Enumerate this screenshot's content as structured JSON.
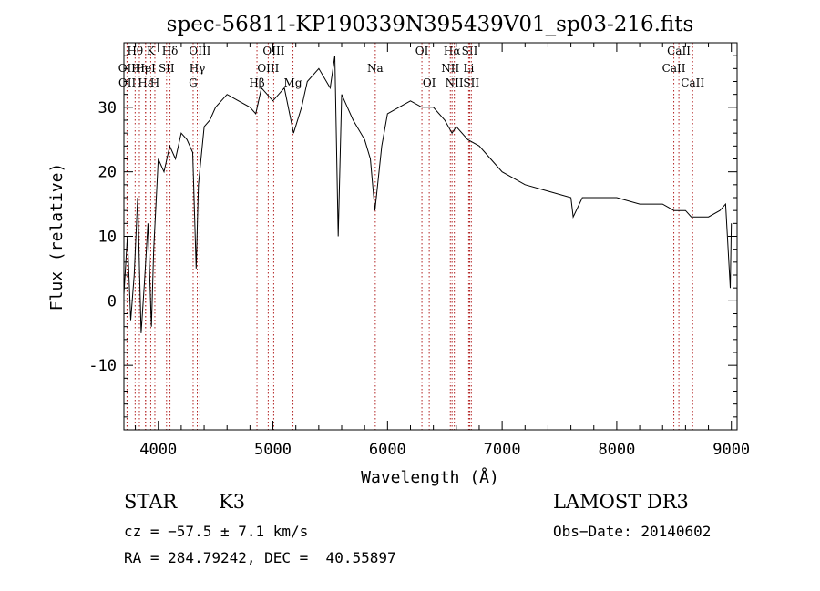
{
  "chart_data": {
    "type": "line",
    "title": "spec-56811-KP190339N395439V01_sp03-216.fits",
    "xlabel": "Wavelength (Å)",
    "ylabel": "Flux (relative)",
    "xlim": [
      3700,
      9050
    ],
    "ylim": [
      -20,
      40
    ],
    "xticks": [
      4000,
      5000,
      6000,
      7000,
      8000,
      9000
    ],
    "yticks": [
      -10,
      0,
      10,
      20,
      30
    ],
    "series": [
      {
        "name": "flux",
        "x": [
          3700,
          3730,
          3760,
          3790,
          3820,
          3850,
          3880,
          3910,
          3940,
          3960,
          3980,
          4000,
          4050,
          4100,
          4150,
          4200,
          4250,
          4300,
          4330,
          4350,
          4400,
          4450,
          4500,
          4600,
          4700,
          4800,
          4850,
          4900,
          5000,
          5100,
          5180,
          5250,
          5300,
          5400,
          5500,
          5540,
          5570,
          5600,
          5700,
          5800,
          5850,
          5890,
          5950,
          6000,
          6100,
          6200,
          6300,
          6400,
          6500,
          6563,
          6600,
          6700,
          6800,
          6900,
          7000,
          7200,
          7400,
          7600,
          7620,
          7700,
          7800,
          8000,
          8200,
          8400,
          8500,
          8600,
          8650,
          8700,
          8800,
          8900,
          8950,
          8990,
          9000
        ],
        "y": [
          1,
          10,
          -3,
          4,
          16,
          -5,
          3,
          12,
          -4,
          8,
          15,
          22,
          20,
          24,
          22,
          26,
          25,
          23,
          5,
          18,
          27,
          28,
          30,
          32,
          31,
          30,
          29,
          33,
          31,
          33,
          26,
          30,
          34,
          36,
          33,
          38,
          10,
          32,
          28,
          25,
          22,
          14,
          24,
          29,
          30,
          31,
          30,
          30,
          28,
          26,
          27,
          25,
          24,
          22,
          20,
          18,
          17,
          16,
          13,
          16,
          16,
          16,
          15,
          15,
          14,
          14,
          13,
          13,
          13,
          14,
          15,
          2,
          12
        ]
      }
    ],
    "lines": [
      {
        "name": "Hθ",
        "wave": 3798,
        "row": 1
      },
      {
        "name": "OII",
        "wave": 3727,
        "row": 2
      },
      {
        "name": "OII",
        "wave": 3729,
        "row": 3
      },
      {
        "name": "Hη",
        "wave": 3835,
        "row": 2
      },
      {
        "name": "Hε",
        "wave": 3889,
        "row": 3
      },
      {
        "name": "K",
        "wave": 3934,
        "row": 1
      },
      {
        "name": "HeI",
        "wave": 3889,
        "row": 2
      },
      {
        "name": "H",
        "wave": 3970,
        "row": 3
      },
      {
        "name": "Hδ",
        "wave": 4102,
        "row": 1
      },
      {
        "name": "SII",
        "wave": 4072,
        "row": 2
      },
      {
        "name": "OIII",
        "wave": 4363,
        "row": 1
      },
      {
        "name": "Hγ",
        "wave": 4340,
        "row": 2
      },
      {
        "name": "G",
        "wave": 4304,
        "row": 3
      },
      {
        "name": "Hβ",
        "wave": 4861,
        "row": 3
      },
      {
        "name": "OIII",
        "wave": 5007,
        "row": 1
      },
      {
        "name": "OIII",
        "wave": 4959,
        "row": 2
      },
      {
        "name": "Mg",
        "wave": 5175,
        "row": 3
      },
      {
        "name": "Na",
        "wave": 5893,
        "row": 2
      },
      {
        "name": "OI",
        "wave": 6300,
        "row": 1
      },
      {
        "name": "OI",
        "wave": 6364,
        "row": 3
      },
      {
        "name": "Hα",
        "wave": 6563,
        "row": 1
      },
      {
        "name": "NII",
        "wave": 6548,
        "row": 2
      },
      {
        "name": "NII",
        "wave": 6583,
        "row": 3
      },
      {
        "name": "SII",
        "wave": 6717,
        "row": 1
      },
      {
        "name": "Li",
        "wave": 6708,
        "row": 2
      },
      {
        "name": "SII",
        "wave": 6731,
        "row": 3
      },
      {
        "name": "CaII",
        "wave": 8542,
        "row": 1
      },
      {
        "name": "CaII",
        "wave": 8498,
        "row": 2
      },
      {
        "name": "CaII",
        "wave": 8662,
        "row": 3
      }
    ]
  },
  "info": {
    "object_class": "STAR",
    "subclass": "K3",
    "survey": "LAMOST DR3",
    "cz": "cz = −57.5 ± 7.1 km/s",
    "obs_date": "Obs−Date: 20140602",
    "radec": "RA = 284.79242, DEC =  40.55897"
  }
}
